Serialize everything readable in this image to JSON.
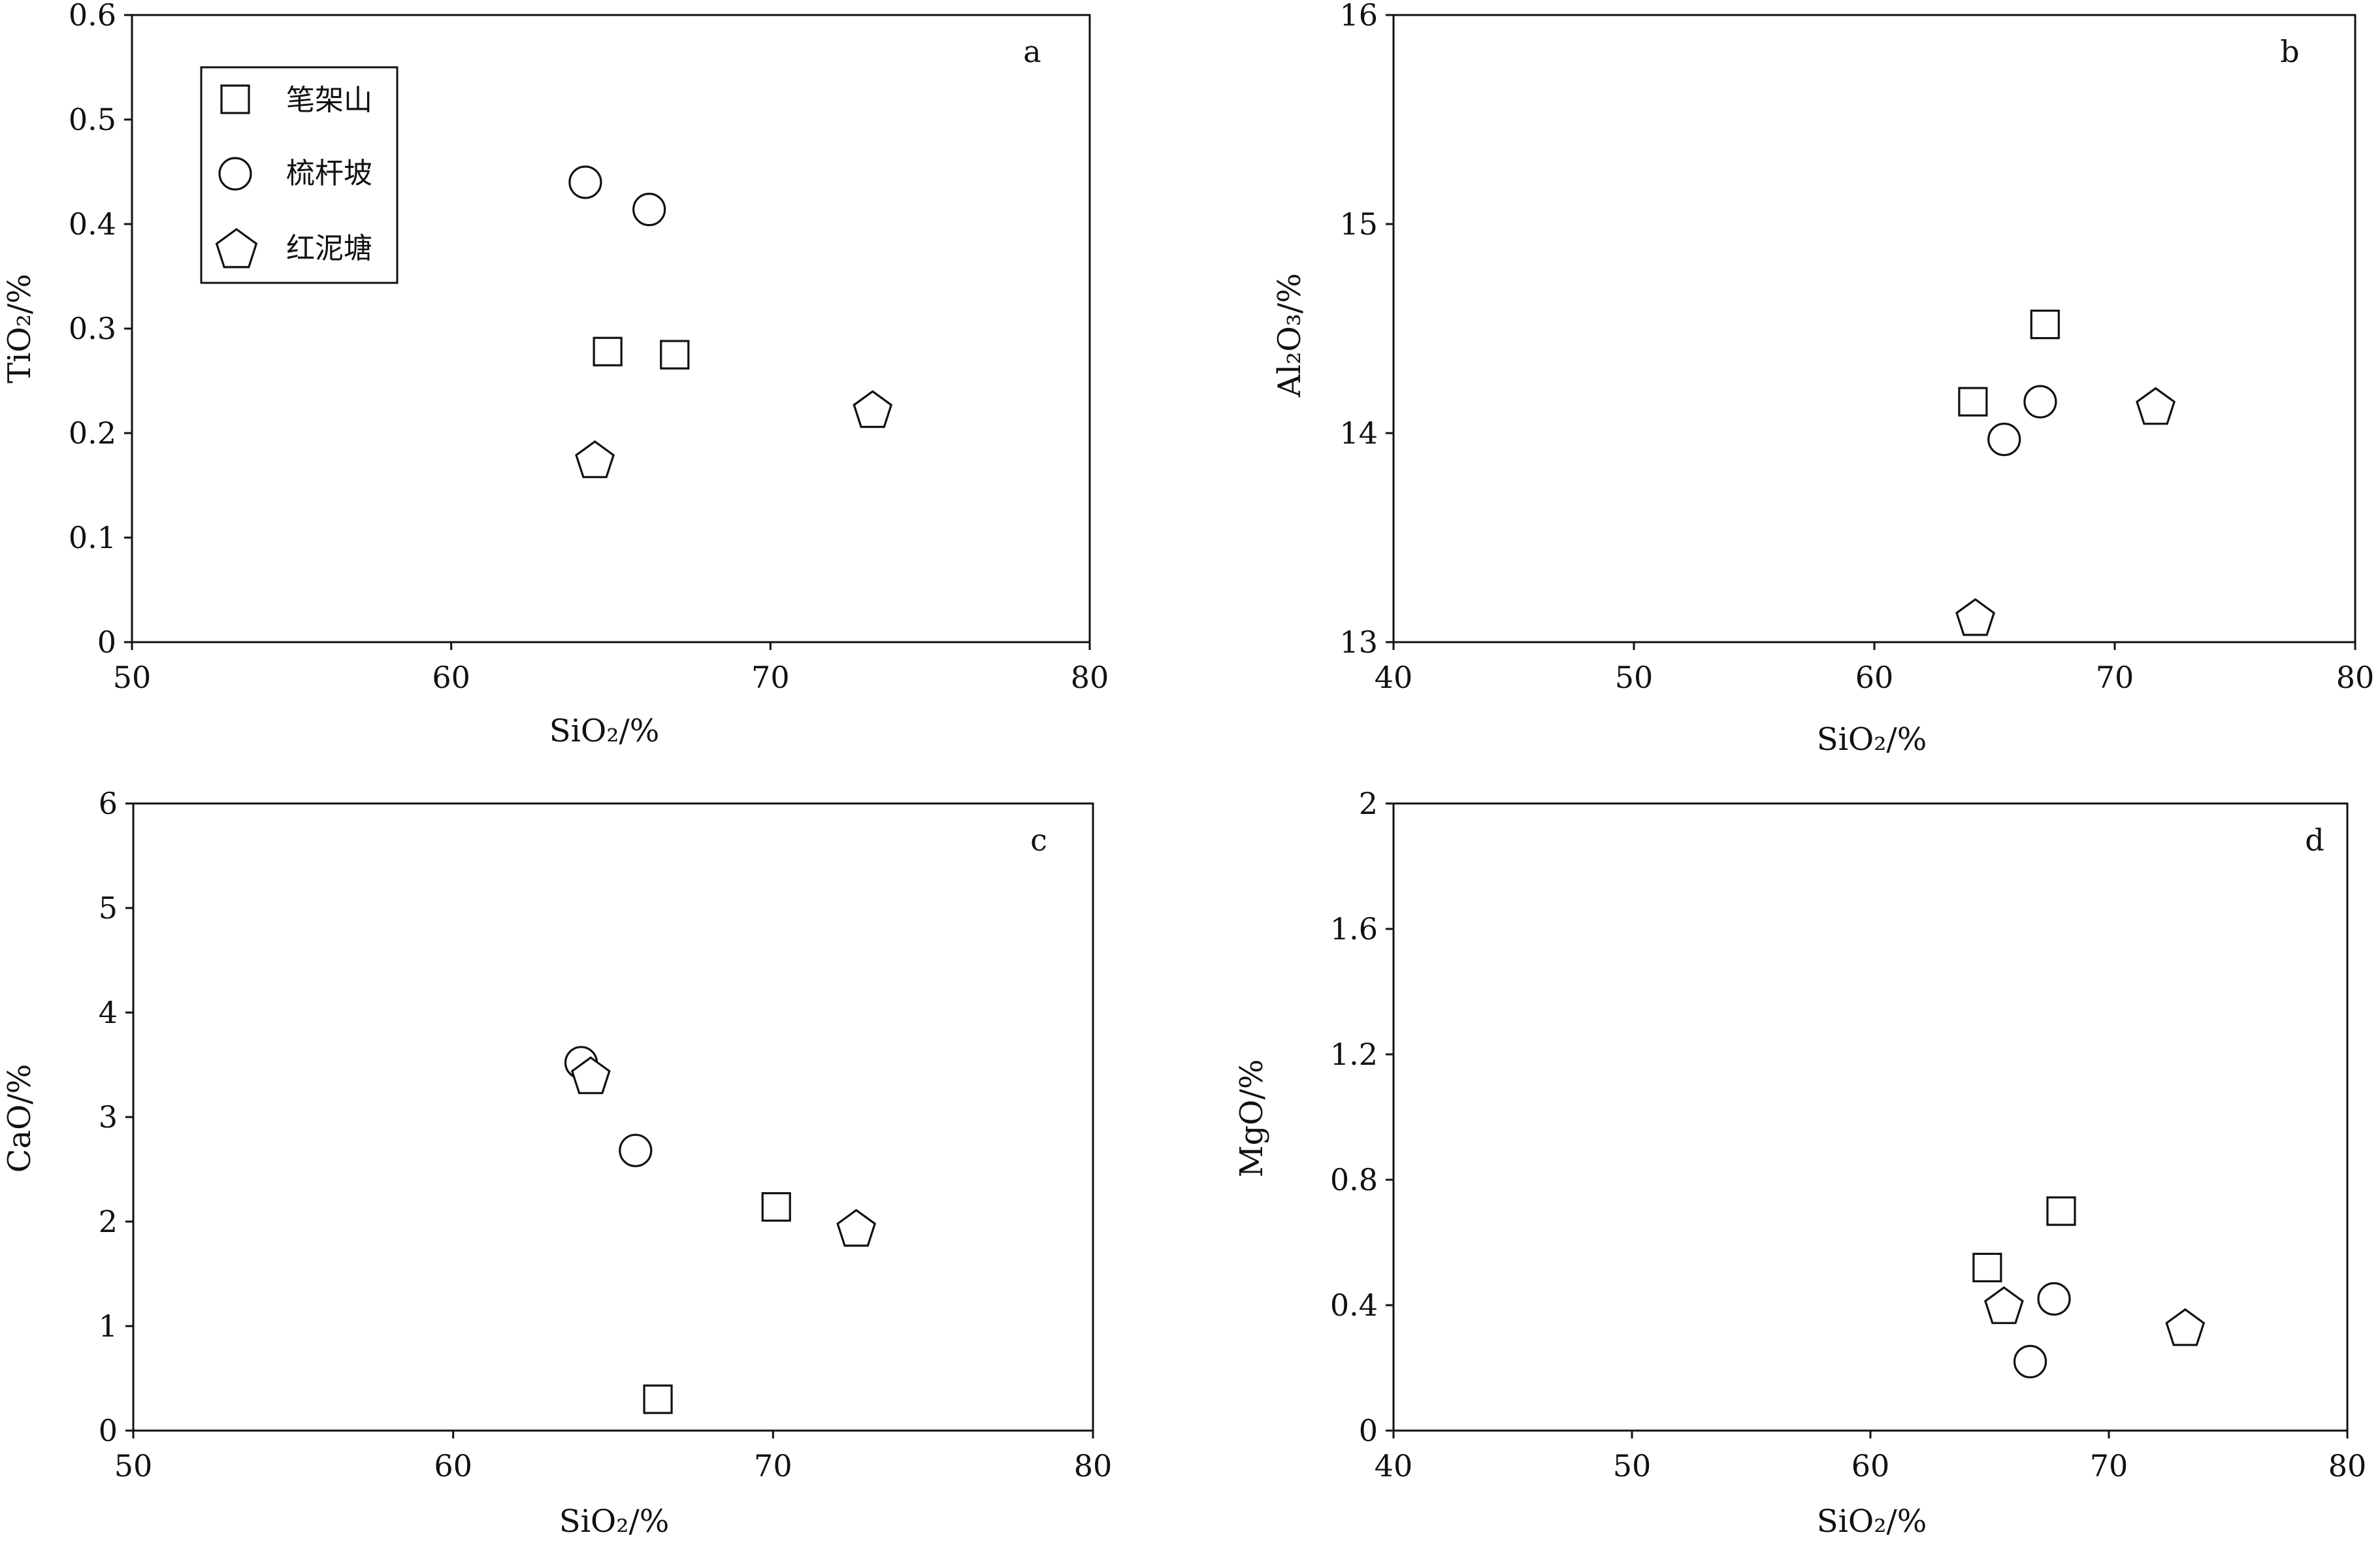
{
  "legend": [
    {
      "name": "笔架山",
      "marker": "square"
    },
    {
      "name": "梳杆坡",
      "marker": "circle"
    },
    {
      "name": "红泥塘",
      "marker": "pentagon"
    }
  ],
  "chart_data": [
    {
      "type": "scatter",
      "panel": "a",
      "xlabel": "SiO₂/%",
      "ylabel": "TiO₂/%",
      "xlim": [
        50,
        80
      ],
      "ylim": [
        0,
        0.6
      ],
      "x_ticks": [
        "50",
        "60",
        "70",
        "80"
      ],
      "y_ticks": [
        "0",
        "0.1",
        "0.2",
        "0.3",
        "0.4",
        "0.5",
        "0.6"
      ],
      "grid": false,
      "legend_position": "top-left",
      "series": [
        {
          "name": "笔架山",
          "marker": "square",
          "points": [
            [
              64.9,
              0.278
            ],
            [
              67.0,
              0.275
            ]
          ]
        },
        {
          "name": "梳杆坡",
          "marker": "circle",
          "points": [
            [
              64.2,
              0.44
            ],
            [
              66.2,
              0.414
            ]
          ]
        },
        {
          "name": "红泥塘",
          "marker": "pentagon",
          "points": [
            [
              64.5,
              0.175
            ],
            [
              73.2,
              0.223
            ]
          ]
        }
      ]
    },
    {
      "type": "scatter",
      "panel": "b",
      "xlabel": "SiO₂/%",
      "ylabel": "Al₂O₃/%",
      "xlim": [
        40,
        80
      ],
      "ylim": [
        13,
        16
      ],
      "x_ticks": [
        "40",
        "50",
        "60",
        "70",
        "80"
      ],
      "y_ticks": [
        "13",
        "14",
        "15",
        "16"
      ],
      "grid": false,
      "series": [
        {
          "name": "笔架山",
          "marker": "square",
          "points": [
            [
              64.1,
              14.15
            ],
            [
              67.1,
              14.52
            ]
          ]
        },
        {
          "name": "梳杆坡",
          "marker": "circle",
          "points": [
            [
              65.4,
              13.97
            ],
            [
              66.9,
              14.15
            ]
          ]
        },
        {
          "name": "红泥塘",
          "marker": "pentagon",
          "points": [
            [
              64.2,
              13.12
            ],
            [
              71.7,
              14.13
            ]
          ]
        }
      ]
    },
    {
      "type": "scatter",
      "panel": "c",
      "xlabel": "SiO₂/%",
      "ylabel": "CaO/%",
      "xlim": [
        50,
        80
      ],
      "ylim": [
        0,
        6
      ],
      "x_ticks": [
        "50",
        "60",
        "70",
        "80"
      ],
      "y_ticks": [
        "0",
        "1",
        "2",
        "3",
        "4",
        "5",
        "6"
      ],
      "grid": false,
      "series": [
        {
          "name": "笔架山",
          "marker": "square",
          "points": [
            [
              66.4,
              0.3
            ],
            [
              70.1,
              2.14
            ]
          ]
        },
        {
          "name": "梳杆坡",
          "marker": "circle",
          "points": [
            [
              64.0,
              3.52
            ],
            [
              65.7,
              2.68
            ]
          ]
        },
        {
          "name": "红泥塘",
          "marker": "pentagon",
          "points": [
            [
              64.3,
              3.4
            ],
            [
              72.6,
              1.94
            ]
          ]
        }
      ]
    },
    {
      "type": "scatter",
      "panel": "d",
      "xlabel": "SiO₂/%",
      "ylabel": "MgO/%",
      "xlim": [
        40,
        80
      ],
      "ylim": [
        0,
        2
      ],
      "x_ticks": [
        "40",
        "50",
        "60",
        "70",
        "80"
      ],
      "y_ticks": [
        "0",
        "0.4",
        "0.8",
        "1.2",
        "1.6",
        "2"
      ],
      "grid": false,
      "series": [
        {
          "name": "笔架山",
          "marker": "square",
          "points": [
            [
              64.9,
              0.52
            ],
            [
              68.0,
              0.7
            ]
          ]
        },
        {
          "name": "梳杆坡",
          "marker": "circle",
          "points": [
            [
              66.7,
              0.22
            ],
            [
              67.7,
              0.42
            ]
          ]
        },
        {
          "name": "红泥塘",
          "marker": "pentagon",
          "points": [
            [
              65.6,
              0.4
            ],
            [
              73.2,
              0.33
            ]
          ]
        }
      ]
    }
  ]
}
